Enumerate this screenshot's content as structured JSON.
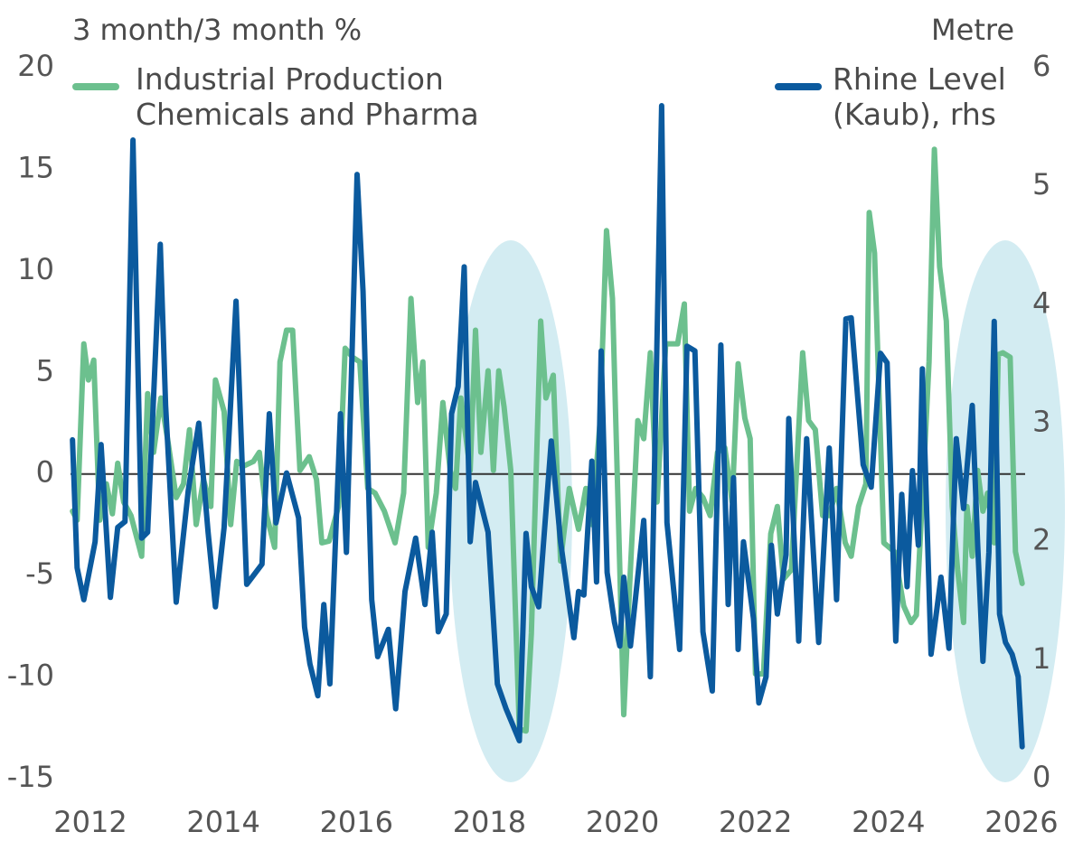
{
  "chart_data": {
    "type": "line",
    "y_label": "3 month/3 month %",
    "y2_label": "Metre",
    "xlim": [
      2011.6,
      2026.3
    ],
    "xticks": [
      2012,
      2014,
      2016,
      2018,
      2020,
      2022,
      2024,
      2026
    ],
    "ylim": [
      -15,
      20
    ],
    "yticks": [
      -15,
      -10,
      -5,
      0,
      5,
      10,
      15,
      20
    ],
    "y2lim": [
      0,
      6
    ],
    "y2ticks": [
      0,
      1,
      2,
      3,
      4,
      5,
      6
    ],
    "hline": 0,
    "series": [
      {
        "name": "Industrial Production Chemicals and Pharma",
        "color": "#6cc08e",
        "x": [
          2011.73,
          2011.8,
          2011.9,
          2011.97,
          2012.05,
          2012.14,
          2012.24,
          2012.33,
          2012.41,
          2012.5,
          2012.61,
          2012.77,
          2012.86,
          2012.95,
          2013.06,
          2013.17,
          2013.29,
          2013.4,
          2013.49,
          2013.59,
          2013.7,
          2013.81,
          2013.88,
          2014.01,
          2014.11,
          2014.2,
          2014.31,
          2014.45,
          2014.54,
          2014.65,
          2014.77,
          2014.85,
          2014.95,
          2015.04,
          2015.15,
          2015.29,
          2015.4,
          2015.48,
          2015.59,
          2015.73,
          2015.83,
          2015.94,
          2016.05,
          2016.17,
          2016.28,
          2016.42,
          2016.58,
          2016.71,
          2016.82,
          2016.92,
          2017.0,
          2017.08,
          2017.2,
          2017.3,
          2017.41,
          2017.49,
          2017.57,
          2017.71,
          2017.79,
          2017.87,
          2017.98,
          2018.06,
          2018.14,
          2018.22,
          2018.32,
          2018.45,
          2018.55,
          2018.63,
          2018.77,
          2018.85,
          2018.96,
          2019.07,
          2019.2,
          2019.34,
          2019.45,
          2019.54,
          2019.66,
          2019.76,
          2019.85,
          2020.02,
          2020.11,
          2020.23,
          2020.32,
          2020.42,
          2020.52,
          2020.65,
          2020.83,
          2020.93,
          2021.01,
          2021.1,
          2021.21,
          2021.32,
          2021.43,
          2021.54,
          2021.65,
          2021.74,
          2021.84,
          2021.92,
          2022.0,
          2022.12,
          2022.23,
          2022.33,
          2022.42,
          2022.54,
          2022.71,
          2022.8,
          2022.9,
          2023.01,
          2023.11,
          2023.22,
          2023.35,
          2023.44,
          2023.55,
          2023.66,
          2023.71,
          2023.79,
          2023.93,
          2024.09,
          2024.23,
          2024.34,
          2024.42,
          2024.53,
          2024.61,
          2024.69,
          2024.77,
          2024.87,
          2024.96,
          2025.04,
          2025.13,
          2025.18,
          2025.26,
          2025.34,
          2025.42,
          2025.49,
          2025.59,
          2025.65,
          2025.72,
          2025.83,
          2025.91,
          2026.01
        ],
        "values": [
          -1.83,
          -2.27,
          6.41,
          4.63,
          5.61,
          -2.27,
          -0.49,
          -1.96,
          0.53,
          -1.38,
          -2.05,
          -4.05,
          3.96,
          1.07,
          3.74,
          1.51,
          -1.16,
          -0.49,
          2.18,
          -2.49,
          -0.27,
          -1.6,
          4.63,
          3.07,
          -2.49,
          0.62,
          0.4,
          0.62,
          1.07,
          -2.05,
          -3.61,
          5.52,
          7.08,
          7.08,
          0.18,
          0.85,
          -0.27,
          -3.39,
          -3.3,
          -1.6,
          6.19,
          5.75,
          5.52,
          -0.71,
          -0.94,
          -1.83,
          -3.39,
          -0.94,
          8.64,
          3.52,
          5.52,
          -3.61,
          -0.94,
          3.52,
          0.18,
          -0.71,
          3.74,
          0.18,
          7.08,
          1.07,
          5.08,
          0.18,
          5.08,
          3.3,
          0.18,
          -12.56,
          -12.65,
          -7.84,
          7.53,
          3.74,
          4.86,
          -4.28,
          -0.71,
          -2.72,
          -0.71,
          -2.49,
          2.41,
          11.98,
          8.64,
          -11.85,
          -5.39,
          2.63,
          1.74,
          5.97,
          -1.38,
          6.41,
          6.41,
          8.37,
          -1.83,
          -0.71,
          -1.16,
          -2.05,
          1.07,
          1.29,
          -1.38,
          5.43,
          2.76,
          1.74,
          -9.84,
          -9.84,
          -2.94,
          -1.6,
          -5.17,
          -4.72,
          5.97,
          2.63,
          2.18,
          -2.05,
          -2.05,
          -0.71,
          -3.39,
          -4.05,
          -1.6,
          -0.49,
          12.87,
          10.87,
          -3.39,
          -3.83,
          -6.5,
          -7.31,
          -6.95,
          0.18,
          5.52,
          15.99,
          10.2,
          7.53,
          -1.6,
          -4.72,
          -7.31,
          -1.6,
          -4.05,
          0.18,
          -1.83,
          -0.94,
          -3.39,
          5.88,
          5.97,
          5.75,
          -3.83,
          -5.39
        ]
      },
      {
        "name": "Rhine Level (Kaub), rhs",
        "color": "#0b5a9e",
        "axis": "y2",
        "x": [
          2011.73,
          2011.8,
          2011.9,
          2012.07,
          2012.16,
          2012.3,
          2012.41,
          2012.52,
          2012.64,
          2012.77,
          2012.86,
          2013.05,
          2013.13,
          2013.29,
          2013.47,
          2013.63,
          2013.77,
          2013.88,
          2014.01,
          2014.19,
          2014.35,
          2014.58,
          2014.69,
          2014.79,
          2014.95,
          2015.13,
          2015.22,
          2015.3,
          2015.42,
          2015.51,
          2015.6,
          2015.76,
          2015.85,
          2016.01,
          2016.1,
          2016.23,
          2016.32,
          2016.48,
          2016.59,
          2016.73,
          2016.89,
          2017.03,
          2017.14,
          2017.23,
          2017.35,
          2017.43,
          2017.53,
          2017.62,
          2017.71,
          2017.79,
          2017.98,
          2018.12,
          2018.25,
          2018.45,
          2018.55,
          2018.63,
          2018.74,
          2018.93,
          2019.07,
          2019.27,
          2019.34,
          2019.42,
          2019.54,
          2019.61,
          2019.68,
          2019.77,
          2019.88,
          2019.96,
          2020.02,
          2020.12,
          2020.32,
          2020.42,
          2020.59,
          2020.67,
          2020.86,
          2020.97,
          2021.09,
          2021.21,
          2021.35,
          2021.48,
          2021.59,
          2021.67,
          2021.74,
          2021.82,
          2021.97,
          2022.05,
          2022.16,
          2022.24,
          2022.33,
          2022.46,
          2022.5,
          2022.65,
          2022.77,
          2022.95,
          2023.11,
          2023.22,
          2023.36,
          2023.44,
          2023.62,
          2023.74,
          2023.88,
          2023.98,
          2024.11,
          2024.2,
          2024.28,
          2024.36,
          2024.45,
          2024.51,
          2024.64,
          2024.79,
          2024.91,
          2025.02,
          2025.13,
          2025.26,
          2025.34,
          2025.42,
          2025.51,
          2025.59,
          2025.67,
          2025.76,
          2025.86,
          2025.95,
          2026.01
        ],
        "values": [
          2.86,
          1.78,
          1.51,
          2.0,
          2.82,
          1.53,
          2.12,
          2.17,
          5.39,
          2.03,
          2.08,
          4.51,
          3.15,
          1.49,
          2.43,
          3.0,
          2.08,
          1.45,
          2.12,
          4.03,
          1.64,
          1.81,
          3.08,
          2.16,
          2.58,
          2.2,
          1.28,
          0.97,
          0.7,
          1.47,
          0.8,
          3.08,
          1.91,
          5.1,
          4.11,
          1.51,
          1.03,
          1.26,
          0.59,
          1.58,
          2.03,
          1.47,
          2.08,
          1.24,
          1.39,
          3.08,
          3.31,
          4.32,
          2.0,
          2.5,
          2.08,
          0.8,
          0.59,
          0.32,
          2.07,
          1.62,
          1.45,
          2.85,
          2.0,
          1.19,
          1.58,
          1.55,
          2.68,
          1.66,
          3.61,
          1.74,
          1.32,
          1.12,
          1.7,
          1.12,
          2.18,
          0.86,
          5.68,
          2.16,
          1.09,
          3.65,
          3.61,
          1.24,
          0.74,
          3.66,
          1.47,
          2.54,
          1.09,
          2.0,
          1.35,
          0.64,
          0.86,
          1.97,
          1.39,
          1.89,
          3.04,
          1.16,
          2.87,
          1.15,
          2.79,
          1.51,
          3.88,
          3.89,
          2.65,
          2.46,
          3.59,
          3.51,
          1.16,
          2.4,
          1.62,
          2.6,
          1.97,
          3.46,
          1.05,
          1.7,
          1.1,
          2.87,
          2.28,
          3.15,
          1.99,
          0.99,
          1.91,
          3.86,
          1.39,
          1.15,
          1.05,
          0.86,
          0.27
        ]
      }
    ]
  }
}
